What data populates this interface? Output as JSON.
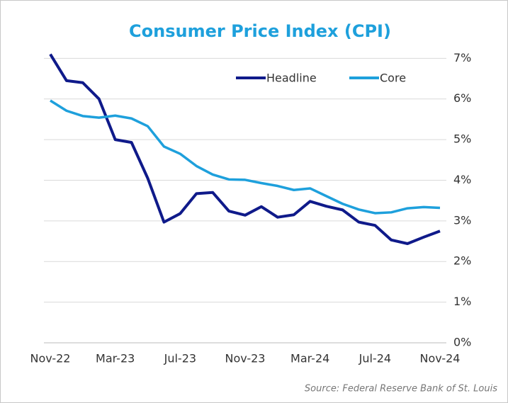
{
  "chart_data": {
    "type": "line",
    "title": "Consumer Price Index (CPI)",
    "source": "Source: Federal Reserve Bank of St. Louis",
    "categories": [
      "Nov-22",
      null,
      null,
      null,
      "Mar-23",
      null,
      null,
      null,
      "Jul-23",
      null,
      null,
      null,
      "Nov-23",
      null,
      null,
      null,
      "Mar-24",
      null,
      null,
      null,
      "Jul-24",
      null,
      null,
      null,
      "Nov-24"
    ],
    "series": [
      {
        "name": "Headline",
        "color": "#0f1a8a",
        "values": [
          7.1,
          6.45,
          6.4,
          6.0,
          5.0,
          4.93,
          4.05,
          2.97,
          3.18,
          3.67,
          3.7,
          3.24,
          3.14,
          3.35,
          3.09,
          3.15,
          3.48,
          3.36,
          3.27,
          2.97,
          2.89,
          2.53,
          2.44,
          2.6,
          2.75
        ]
      },
      {
        "name": "Core",
        "color": "#1ea0dc",
        "values": [
          5.96,
          5.71,
          5.58,
          5.54,
          5.59,
          5.52,
          5.33,
          4.83,
          4.65,
          4.35,
          4.14,
          4.02,
          4.01,
          3.93,
          3.86,
          3.76,
          3.8,
          3.61,
          3.42,
          3.28,
          3.19,
          3.21,
          3.31,
          3.34,
          3.32
        ]
      }
    ],
    "ylim": [
      0,
      7.25
    ],
    "yticks": [
      {
        "value": 0,
        "label": "0%"
      },
      {
        "value": 1,
        "label": "1%"
      },
      {
        "value": 2,
        "label": "2%"
      },
      {
        "value": 3,
        "label": "3%"
      },
      {
        "value": 4,
        "label": "4%"
      },
      {
        "value": 5,
        "label": "5%"
      },
      {
        "value": 6,
        "label": "6%"
      },
      {
        "value": 7,
        "label": "7%"
      }
    ],
    "y_axis_side": "right",
    "grid": true
  }
}
